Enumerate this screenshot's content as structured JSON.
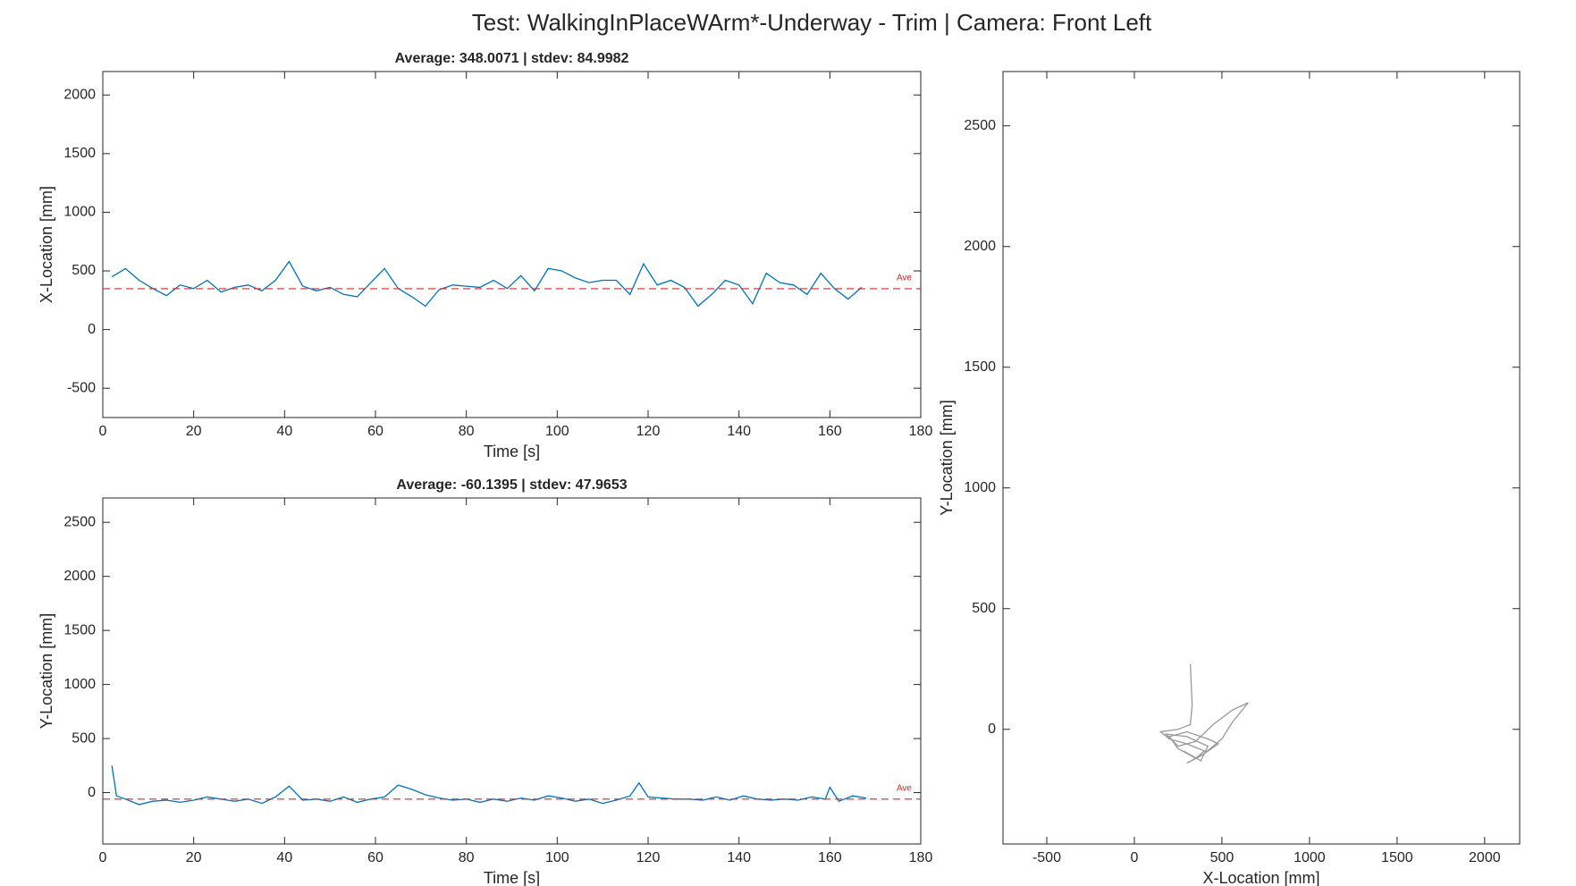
{
  "title": "Test: WalkingInPlaceWArm*-Underway - Trim  |  Camera: Front Left",
  "chart_data": [
    {
      "type": "line",
      "title": "Average: 348.0071  |  stdev: 84.9982",
      "x_label": "Time [s]",
      "y_label": "X-Location [mm]",
      "xlim": [
        0,
        180
      ],
      "ylim": [
        -750,
        2200
      ],
      "xticks": [
        0,
        20,
        40,
        60,
        80,
        100,
        120,
        140,
        160,
        180
      ],
      "yticks": [
        -500,
        0,
        500,
        1000,
        1500,
        2000
      ],
      "color": "#0072bd",
      "x": [
        2,
        5,
        8,
        11,
        14,
        17,
        20,
        23,
        26,
        29,
        32,
        35,
        38,
        41,
        44,
        47,
        50,
        53,
        56,
        59,
        62,
        65,
        68,
        71,
        74,
        77,
        80,
        83,
        86,
        89,
        92,
        95,
        98,
        101,
        104,
        107,
        110,
        113,
        116,
        119,
        122,
        125,
        128,
        131,
        134,
        137,
        140,
        143,
        146,
        149,
        152,
        155,
        158,
        161,
        164,
        167
      ],
      "values": [
        450,
        520,
        420,
        350,
        290,
        380,
        350,
        420,
        320,
        360,
        380,
        330,
        420,
        580,
        370,
        330,
        360,
        300,
        280,
        400,
        520,
        350,
        280,
        200,
        340,
        380,
        370,
        360,
        420,
        350,
        460,
        330,
        520,
        500,
        440,
        400,
        420,
        420,
        300,
        560,
        380,
        420,
        360,
        200,
        300,
        420,
        380,
        220,
        480,
        400,
        380,
        300,
        480,
        350,
        260,
        360
      ],
      "reference_line": {
        "value": 348.0071,
        "label": "Ave",
        "color": "#d62728"
      }
    },
    {
      "type": "line",
      "title": "Average: -60.1395  |  stdev: 47.9653",
      "x_label": "Time [s]",
      "y_label": "Y-Location [mm]",
      "xlim": [
        0,
        180
      ],
      "ylim": [
        -475,
        2725
      ],
      "xticks": [
        0,
        20,
        40,
        60,
        80,
        100,
        120,
        140,
        160,
        180
      ],
      "yticks": [
        0,
        500,
        1000,
        1500,
        2000,
        2500
      ],
      "color": "#0072bd",
      "x": [
        2,
        3,
        5,
        8,
        11,
        14,
        17,
        20,
        23,
        26,
        29,
        32,
        35,
        38,
        41,
        44,
        47,
        50,
        53,
        56,
        59,
        62,
        65,
        68,
        71,
        74,
        77,
        80,
        83,
        86,
        89,
        92,
        95,
        98,
        101,
        104,
        107,
        110,
        113,
        116,
        118,
        120,
        123,
        126,
        129,
        132,
        135,
        138,
        141,
        144,
        147,
        150,
        153,
        156,
        159,
        160,
        162,
        165,
        168
      ],
      "values": [
        250,
        -30,
        -60,
        -110,
        -80,
        -70,
        -90,
        -70,
        -40,
        -60,
        -80,
        -60,
        -100,
        -40,
        60,
        -70,
        -60,
        -80,
        -40,
        -90,
        -60,
        -40,
        70,
        30,
        -20,
        -50,
        -70,
        -60,
        -90,
        -60,
        -80,
        -50,
        -70,
        -30,
        -50,
        -80,
        -60,
        -100,
        -70,
        -30,
        90,
        -40,
        -50,
        -60,
        -60,
        -70,
        -40,
        -70,
        -30,
        -60,
        -70,
        -60,
        -70,
        -40,
        -60,
        50,
        -80,
        -30,
        -50
      ],
      "reference_line": {
        "value": -60.1395,
        "label": "Ave",
        "color": "#d62728"
      }
    },
    {
      "type": "line",
      "x_label": "X-Location [mm]",
      "y_label": "Y-Location [mm]",
      "xlim": [
        -750,
        2200
      ],
      "ylim": [
        -475,
        2725
      ],
      "xticks": [
        -500,
        0,
        500,
        1000,
        1500,
        2000
      ],
      "yticks": [
        0,
        500,
        1000,
        1500,
        2000,
        2500
      ],
      "color": "#555555",
      "x": [
        320,
        330,
        320,
        250,
        150,
        200,
        300,
        400,
        350,
        250,
        200,
        300,
        420,
        480,
        380,
        300,
        400,
        500,
        560,
        650,
        560,
        450,
        350,
        250,
        180,
        300,
        420,
        380,
        280
      ],
      "values": [
        270,
        100,
        20,
        0,
        -10,
        -40,
        -60,
        -90,
        -120,
        -80,
        -30,
        -10,
        -40,
        -60,
        -110,
        -140,
        -100,
        -40,
        30,
        110,
        80,
        20,
        -50,
        -70,
        -20,
        -30,
        -70,
        -130,
        -90
      ]
    }
  ]
}
